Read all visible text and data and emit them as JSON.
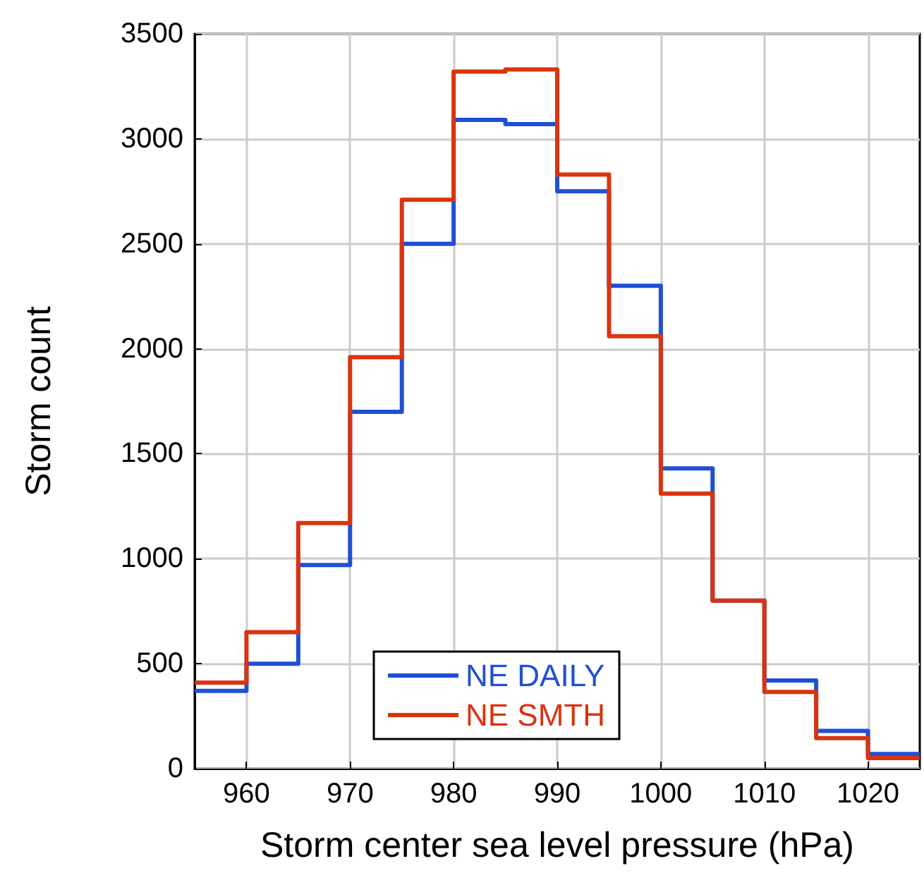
{
  "chart_data": {
    "type": "histogram",
    "xlabel": "Storm center sea level pressure (hPa)",
    "ylabel": "Storm count",
    "bins": [
      955,
      960,
      965,
      970,
      975,
      980,
      985,
      990,
      995,
      1000,
      1005,
      1010,
      1015,
      1020,
      1025
    ],
    "series": [
      {
        "name": "NE DAILY",
        "color": "#1f4fd6",
        "values": [
          370,
          500,
          970,
          1700,
          2500,
          3090,
          3070,
          2750,
          2300,
          1430,
          800,
          420,
          180,
          70
        ]
      },
      {
        "name": "NE SMTH",
        "color": "#d9340f",
        "values": [
          410,
          650,
          1170,
          1960,
          2710,
          3320,
          3330,
          2830,
          2060,
          1310,
          800,
          365,
          145,
          50
        ]
      }
    ],
    "xlim": [
      955,
      1025
    ],
    "xticks": [
      960,
      970,
      980,
      990,
      1000,
      1010,
      1020
    ],
    "ylim": [
      0,
      3500
    ],
    "yticks": [
      0,
      500,
      1000,
      1500,
      2000,
      2500,
      3000,
      3500
    ],
    "grid": true,
    "legend": "bottom"
  }
}
